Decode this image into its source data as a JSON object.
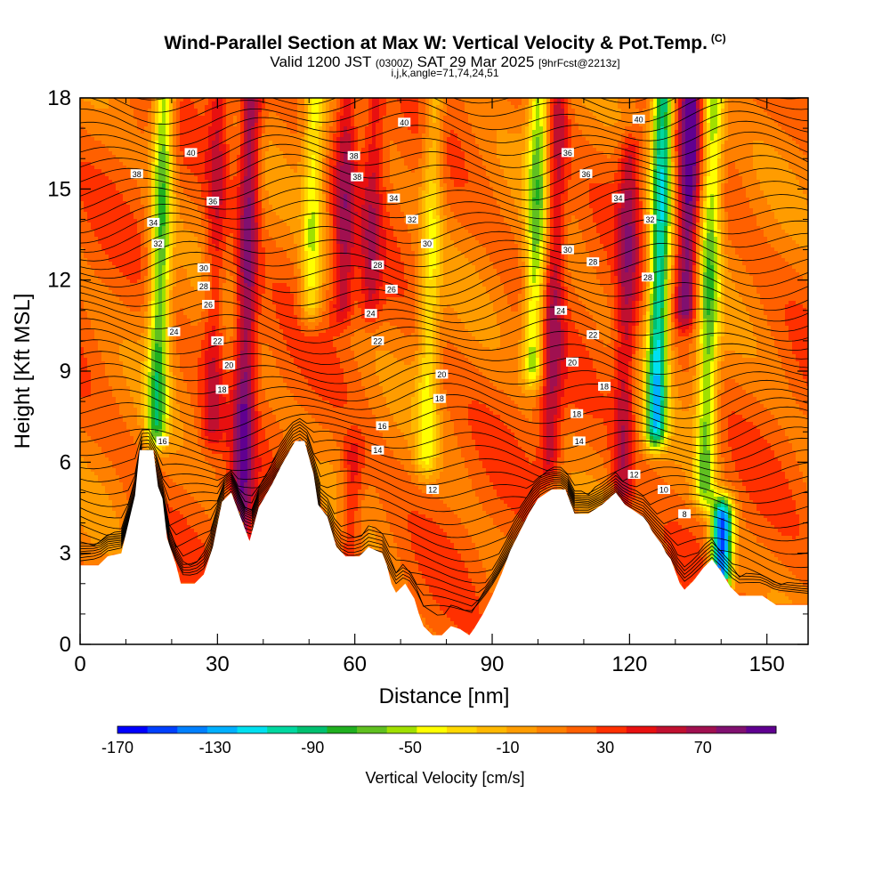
{
  "header": {
    "title": "Wind-Parallel Section at Max W: Vertical Velocity & Pot.Temp.",
    "title_mark": "(C)",
    "valid_prefix": "Valid 1200 JST",
    "valid_small": "(0300Z)",
    "valid_date": "SAT 29 Mar 2025",
    "forecast_tag": "[9hrFcst@2213z]",
    "indices": "i,j,k,angle=71,74,24,51"
  },
  "chart_data": {
    "type": "heatmap",
    "xlabel": "Distance [nm]",
    "ylabel": "Height [Kft MSL]",
    "xlim": [
      0,
      159
    ],
    "ylim": [
      0,
      18
    ],
    "xticks": [
      0,
      30,
      60,
      90,
      120,
      150
    ],
    "yticks": [
      0,
      3,
      6,
      9,
      12,
      15,
      18
    ],
    "colorbar": {
      "label": "Vertical Velocity [cm/s]",
      "ticks": [
        -170,
        -130,
        -90,
        -50,
        -10,
        30,
        70
      ],
      "range": [
        -170,
        100
      ],
      "colors": [
        "#0000ff",
        "#0040ff",
        "#0080ff",
        "#00b0ff",
        "#00e0f0",
        "#00d8a0",
        "#00c070",
        "#20b020",
        "#60c020",
        "#a0e000",
        "#ffff00",
        "#ffd800",
        "#ffb800",
        "#ff9c00",
        "#ff8000",
        "#ff6000",
        "#ff3000",
        "#e81010",
        "#c01030",
        "#a01050",
        "#801070",
        "#600090"
      ]
    },
    "terrain_kft": [
      [
        0,
        2.6
      ],
      [
        4,
        2.6
      ],
      [
        6,
        2.9
      ],
      [
        9,
        3.0
      ],
      [
        12,
        4.9
      ],
      [
        13,
        6.4
      ],
      [
        16,
        6.4
      ],
      [
        17,
        5.2
      ],
      [
        18,
        4.8
      ],
      [
        19,
        3.5
      ],
      [
        21,
        2.6
      ],
      [
        22,
        2.0
      ],
      [
        25,
        2.0
      ],
      [
        27,
        2.3
      ],
      [
        29,
        3.2
      ],
      [
        31,
        4.7
      ],
      [
        33,
        5.0
      ],
      [
        35,
        4.2
      ],
      [
        37,
        3.4
      ],
      [
        39,
        4.5
      ],
      [
        42,
        5.3
      ],
      [
        44,
        5.9
      ],
      [
        47,
        6.7
      ],
      [
        49,
        6.7
      ],
      [
        51,
        5.6
      ],
      [
        52,
        4.6
      ],
      [
        54,
        4.2
      ],
      [
        56,
        3.2
      ],
      [
        58,
        2.9
      ],
      [
        61,
        2.9
      ],
      [
        63,
        3.2
      ],
      [
        66,
        3.0
      ],
      [
        67,
        2.6
      ],
      [
        68,
        2.0
      ],
      [
        69,
        1.7
      ],
      [
        71,
        2.0
      ],
      [
        73,
        1.5
      ],
      [
        74,
        1.0
      ],
      [
        75,
        0.6
      ],
      [
        77,
        0.3
      ],
      [
        79,
        0.3
      ],
      [
        81,
        0.6
      ],
      [
        83,
        0.5
      ],
      [
        85,
        0.3
      ],
      [
        86,
        0.5
      ],
      [
        88,
        1.0
      ],
      [
        90,
        1.6
      ],
      [
        92,
        2.3
      ],
      [
        94,
        3.1
      ],
      [
        96,
        3.7
      ],
      [
        98,
        4.3
      ],
      [
        100,
        4.8
      ],
      [
        103,
        5.1
      ],
      [
        106,
        5.1
      ],
      [
        108,
        4.3
      ],
      [
        111,
        4.3
      ],
      [
        114,
        4.6
      ],
      [
        117,
        5.0
      ],
      [
        119,
        4.6
      ],
      [
        121,
        4.4
      ],
      [
        123,
        4.2
      ],
      [
        124,
        4.0
      ],
      [
        125,
        3.7
      ],
      [
        126,
        3.5
      ],
      [
        127,
        3.3
      ],
      [
        128,
        3.0
      ],
      [
        129,
        2.8
      ],
      [
        130,
        2.4
      ],
      [
        131,
        2.0
      ],
      [
        132,
        1.8
      ],
      [
        134,
        2.1
      ],
      [
        136,
        2.5
      ],
      [
        138,
        2.8
      ],
      [
        140,
        2.4
      ],
      [
        142,
        1.9
      ],
      [
        144,
        1.6
      ],
      [
        149,
        1.6
      ],
      [
        152,
        1.3
      ],
      [
        155,
        1.3
      ],
      [
        159,
        1.3
      ]
    ],
    "updraft_bands": [
      {
        "x": 17,
        "w_cm_s": -70,
        "low": 7,
        "high": 18
      },
      {
        "x": 29,
        "w_cm_s": 50,
        "low": 7,
        "high": 18
      },
      {
        "x": 36,
        "w_cm_s": 80,
        "low": 3.5,
        "high": 18
      },
      {
        "x": 50,
        "w_cm_s": -40,
        "low": 11,
        "high": 18
      },
      {
        "x": 57,
        "w_cm_s": 60,
        "low": 11,
        "high": 18
      },
      {
        "x": 60,
        "w_cm_s": 50,
        "low": 3,
        "high": 6
      },
      {
        "x": 63,
        "w_cm_s": 50,
        "low": 11,
        "high": 18
      },
      {
        "x": 76,
        "w_cm_s": -30,
        "low": 6,
        "high": 18
      },
      {
        "x": 99,
        "w_cm_s": -60,
        "low": 9,
        "high": 18
      },
      {
        "x": 103,
        "w_cm_s": 60,
        "low": 6,
        "high": 18
      },
      {
        "x": 119,
        "w_cm_s": 60,
        "low": 4.8,
        "high": 16
      },
      {
        "x": 126,
        "w_cm_s": -110,
        "low": 7,
        "high": 18
      },
      {
        "x": 132,
        "w_cm_s": 90,
        "low": 11,
        "high": 18
      },
      {
        "x": 137,
        "w_cm_s": -60,
        "low": 5,
        "high": 18
      },
      {
        "x": 141,
        "w_cm_s": -150,
        "low": 2,
        "high": 4
      }
    ],
    "theta_labels": [
      {
        "text": "40",
        "x": 70.8,
        "y": 17.2
      },
      {
        "text": "40",
        "x": 24.2,
        "y": 16.2
      },
      {
        "text": "38",
        "x": 12.4,
        "y": 15.5
      },
      {
        "text": "38",
        "x": 59.8,
        "y": 16.1
      },
      {
        "text": "38",
        "x": 60.5,
        "y": 15.4
      },
      {
        "text": "36",
        "x": 29,
        "y": 14.6
      },
      {
        "text": "34",
        "x": 16,
        "y": 13.9
      },
      {
        "text": "34",
        "x": 68.5,
        "y": 14.7
      },
      {
        "text": "32",
        "x": 17,
        "y": 13.2
      },
      {
        "text": "32",
        "x": 72.5,
        "y": 14.0
      },
      {
        "text": "30",
        "x": 75.8,
        "y": 13.2
      },
      {
        "text": "30",
        "x": 27,
        "y": 12.4
      },
      {
        "text": "28",
        "x": 27,
        "y": 11.8
      },
      {
        "text": "28",
        "x": 65,
        "y": 12.5
      },
      {
        "text": "26",
        "x": 28,
        "y": 11.2
      },
      {
        "text": "26",
        "x": 68,
        "y": 11.7
      },
      {
        "text": "24",
        "x": 20.5,
        "y": 10.3
      },
      {
        "text": "24",
        "x": 63.5,
        "y": 10.9
      },
      {
        "text": "22",
        "x": 30,
        "y": 10.0
      },
      {
        "text": "22",
        "x": 65,
        "y": 10.0
      },
      {
        "text": "20",
        "x": 32.5,
        "y": 9.2
      },
      {
        "text": "20",
        "x": 79,
        "y": 8.9
      },
      {
        "text": "18",
        "x": 31,
        "y": 8.4
      },
      {
        "text": "18",
        "x": 78.5,
        "y": 8.1
      },
      {
        "text": "16",
        "x": 18,
        "y": 6.7
      },
      {
        "text": "16",
        "x": 66,
        "y": 7.2
      },
      {
        "text": "14",
        "x": 65,
        "y": 6.4
      },
      {
        "text": "12",
        "x": 77,
        "y": 5.1
      },
      {
        "text": "36",
        "x": 106.5,
        "y": 16.2
      },
      {
        "text": "40",
        "x": 122,
        "y": 17.3
      },
      {
        "text": "36",
        "x": 110.5,
        "y": 15.5
      },
      {
        "text": "34",
        "x": 117.5,
        "y": 14.7
      },
      {
        "text": "32",
        "x": 124.5,
        "y": 14.0
      },
      {
        "text": "30",
        "x": 106.5,
        "y": 13.0
      },
      {
        "text": "28",
        "x": 112,
        "y": 12.6
      },
      {
        "text": "28",
        "x": 124,
        "y": 12.1
      },
      {
        "text": "24",
        "x": 105,
        "y": 11.0
      },
      {
        "text": "22",
        "x": 112,
        "y": 10.2
      },
      {
        "text": "20",
        "x": 107.5,
        "y": 9.3
      },
      {
        "text": "18",
        "x": 114.5,
        "y": 8.5
      },
      {
        "text": "18",
        "x": 108.5,
        "y": 7.6
      },
      {
        "text": "14",
        "x": 109,
        "y": 6.7
      },
      {
        "text": "12",
        "x": 121,
        "y": 5.6
      },
      {
        "text": "10",
        "x": 127.5,
        "y": 5.1
      },
      {
        "text": "8",
        "x": 132,
        "y": 4.3
      }
    ]
  }
}
